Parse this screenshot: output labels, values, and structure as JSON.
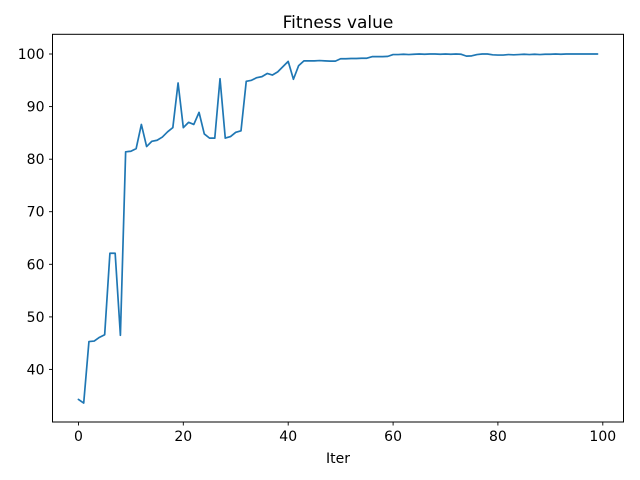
{
  "figure": {
    "background": "#ffffff",
    "spine_color": "#000000",
    "text_color": "#000000"
  },
  "chart_data": {
    "type": "line",
    "title": "Fitness value",
    "xlabel": "Iter",
    "ylabel": "",
    "legend": null,
    "grid": false,
    "line_color": "#1f77b4",
    "xlim": [
      -4.95,
      103.95
    ],
    "ylim": [
      30.0,
      103.75
    ],
    "xticks": [
      0,
      20,
      40,
      60,
      80,
      100
    ],
    "yticks": [
      40,
      50,
      60,
      70,
      80,
      90,
      100
    ],
    "x": [
      0,
      1,
      2,
      3,
      4,
      5,
      6,
      7,
      8,
      9,
      10,
      11,
      12,
      13,
      14,
      15,
      16,
      17,
      18,
      19,
      20,
      21,
      22,
      23,
      24,
      25,
      26,
      27,
      28,
      29,
      30,
      31,
      32,
      33,
      34,
      35,
      36,
      37,
      38,
      39,
      40,
      41,
      42,
      43,
      44,
      45,
      46,
      47,
      48,
      49,
      50,
      51,
      52,
      53,
      54,
      55,
      56,
      57,
      58,
      59,
      60,
      61,
      62,
      63,
      64,
      65,
      66,
      67,
      68,
      69,
      70,
      71,
      72,
      73,
      74,
      75,
      76,
      77,
      78,
      79,
      80,
      81,
      82,
      83,
      84,
      85,
      86,
      87,
      88,
      89,
      90,
      91,
      92,
      93,
      94,
      95,
      96,
      97,
      98,
      99
    ],
    "values": [
      34.3,
      33.6,
      45.3,
      45.4,
      46.1,
      46.6,
      62.1,
      62.1,
      46.5,
      81.4,
      81.5,
      82.0,
      86.6,
      82.4,
      83.4,
      83.6,
      84.2,
      85.2,
      86.0,
      94.5,
      86.0,
      87.0,
      86.6,
      88.9,
      84.8,
      84.0,
      84.0,
      95.3,
      84.0,
      84.3,
      85.1,
      85.4,
      94.8,
      95.0,
      95.5,
      95.7,
      96.3,
      96.0,
      96.6,
      97.6,
      98.6,
      95.2,
      97.8,
      98.7,
      98.7,
      98.7,
      98.75,
      98.7,
      98.65,
      98.65,
      99.1,
      99.1,
      99.15,
      99.15,
      99.2,
      99.2,
      99.5,
      99.5,
      99.5,
      99.55,
      99.9,
      99.9,
      99.95,
      99.9,
      99.95,
      100.0,
      99.95,
      100.0,
      100.0,
      99.95,
      100.0,
      99.95,
      100.0,
      99.95,
      99.6,
      99.65,
      99.9,
      100.0,
      100.0,
      99.85,
      99.8,
      99.8,
      99.9,
      99.85,
      99.9,
      99.95,
      99.9,
      99.95,
      99.9,
      99.95,
      99.95,
      100.0,
      99.95,
      100.0,
      100.0,
      100.0,
      100.0,
      100.0,
      100.0,
      100.0
    ]
  }
}
